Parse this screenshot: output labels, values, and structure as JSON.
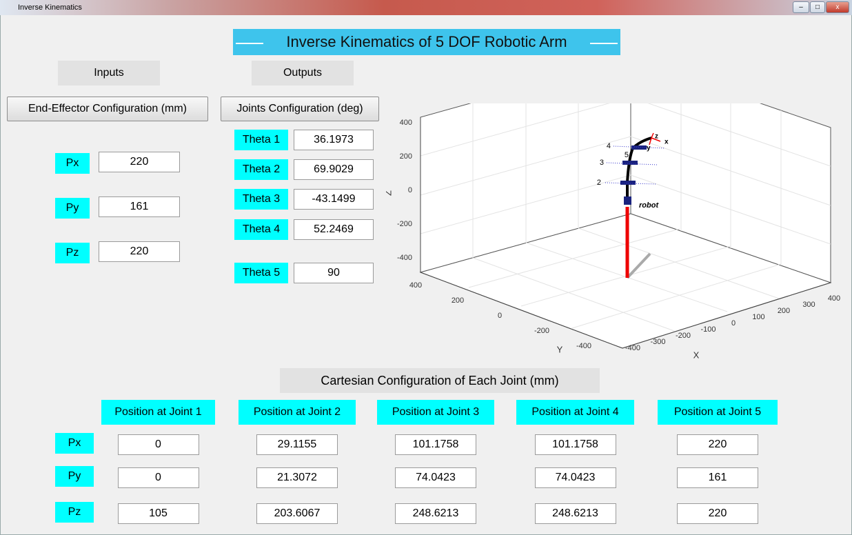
{
  "window": {
    "title": "Inverse Kinematics"
  },
  "header": {
    "title": "Inverse Kinematics of 5 DOF Robotic Arm"
  },
  "inputs": {
    "label": "Inputs",
    "button": "End-Effector Configuration (mm)",
    "fields": [
      {
        "label": "Px",
        "value": 220
      },
      {
        "label": "Py",
        "value": 161
      },
      {
        "label": "Pz",
        "value": 220
      }
    ]
  },
  "outputs": {
    "label": "Outputs",
    "button": "Joints Configuration (deg)",
    "fields": [
      {
        "label": "Theta 1",
        "value": 36.1973
      },
      {
        "label": "Theta 2",
        "value": 69.9029
      },
      {
        "label": "Theta 3",
        "value": -43.1499
      },
      {
        "label": "Theta 4",
        "value": 52.2469
      },
      {
        "label": "Theta 5",
        "value": 90
      }
    ]
  },
  "plot": {
    "z_label": "Z",
    "y_label": "Y",
    "x_label": "X",
    "z_ticks": [
      400,
      200,
      0,
      -200,
      -400
    ],
    "y_ticks": [
      400,
      200,
      0,
      -200,
      -400
    ],
    "x_ticks": [
      -400,
      -300,
      -200,
      -100,
      0,
      100,
      200,
      300,
      400
    ],
    "robot_label": "robot",
    "joint_labels": [
      "2",
      "3",
      "4",
      "5"
    ],
    "frame_labels": [
      "z",
      "y",
      "x"
    ]
  },
  "cartesian": {
    "title": "Cartesian Configuration of Each Joint (mm)",
    "columns": [
      "Position at Joint 1",
      "Position at Joint 2",
      "Position at Joint 3",
      "Position at Joint 4",
      "Position at Joint 5"
    ],
    "row_labels": [
      "Px",
      "Py",
      "Pz"
    ],
    "rows": [
      [
        0,
        29.1155,
        101.1758,
        101.1758,
        220
      ],
      [
        0,
        21.3072,
        74.0423,
        74.0423,
        161
      ],
      [
        105,
        203.6067,
        248.6213,
        248.6213,
        220
      ]
    ]
  }
}
